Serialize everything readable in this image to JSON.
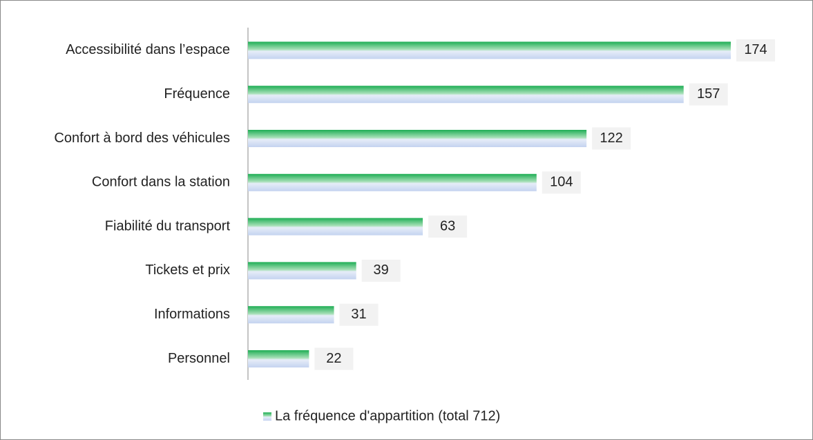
{
  "chart_data": {
    "type": "bar",
    "orientation": "horizontal",
    "categories": [
      "Accessibilité dans l’espace",
      "Fréquence",
      "Confort à bord des véhicules",
      "Confort dans la station",
      "Fiabilité du transport",
      "Tickets et prix",
      "Informations",
      "Personnel"
    ],
    "series": [
      {
        "name": "La fréquence d'appartition (total 712)",
        "color": "#1fae55",
        "values": [
          174,
          157,
          122,
          104,
          63,
          39,
          31,
          22
        ]
      }
    ],
    "legend": "bottom"
  }
}
